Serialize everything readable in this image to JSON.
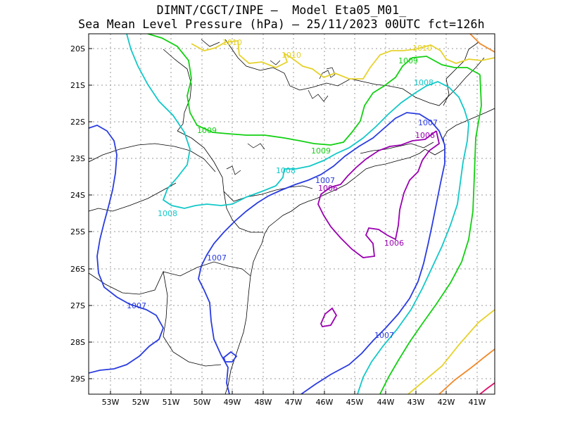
{
  "header": {
    "line1": "DIMNT/CGCT/INPE –  Model Eta05_M01_",
    "line2": "Sea Mean Level Pressure (hPa) – 25/11/2023 00UTC fct=126h"
  },
  "axes": {
    "lat_labels": [
      "20S",
      "21S",
      "22S",
      "23S",
      "24S",
      "25S",
      "26S",
      "27S",
      "28S",
      "29S"
    ],
    "lon_labels": [
      "53W",
      "52W",
      "51W",
      "50W",
      "49W",
      "48W",
      "47W",
      "46W",
      "45W",
      "44W",
      "43W",
      "42W",
      "41W"
    ]
  },
  "colors": {
    "c1006": "#9a00b0",
    "c1007": "#2a3ce0",
    "c1008": "#12c8c8",
    "c1009": "#12d012",
    "c1010": "#e6d22c",
    "c1011": "#f08a2a",
    "c1012": "#e0106a",
    "border": "#000000",
    "grid": "#999999"
  },
  "contour_labels": [
    {
      "id": "l1010a",
      "text": "1010",
      "color_key": "c1010"
    },
    {
      "id": "l1010b",
      "text": "1010",
      "color_key": "c1010"
    },
    {
      "id": "l1010c",
      "text": "1010",
      "color_key": "c1010"
    },
    {
      "id": "l1009a",
      "text": "1009",
      "color_key": "c1009"
    },
    {
      "id": "l1009b",
      "text": "1009",
      "color_key": "c1009"
    },
    {
      "id": "l1009c",
      "text": "1009",
      "color_key": "c1009"
    },
    {
      "id": "l1008a",
      "text": "1008",
      "color_key": "c1008"
    },
    {
      "id": "l1008b",
      "text": "1008",
      "color_key": "c1008"
    },
    {
      "id": "l1008c",
      "text": "1008",
      "color_key": "c1008"
    },
    {
      "id": "l1007a",
      "text": "1007",
      "color_key": "c1007"
    },
    {
      "id": "l1007b",
      "text": "1007",
      "color_key": "c1007"
    },
    {
      "id": "l1007c",
      "text": "1007",
      "color_key": "c1007"
    },
    {
      "id": "l1007d",
      "text": "1007",
      "color_key": "c1007"
    },
    {
      "id": "l1007e",
      "text": "1007",
      "color_key": "c1007"
    },
    {
      "id": "l1006a",
      "text": "1006",
      "color_key": "c1006"
    },
    {
      "id": "l1006b",
      "text": "1006",
      "color_key": "c1006"
    },
    {
      "id": "l1006c",
      "text": "1006",
      "color_key": "c1006"
    }
  ]
}
